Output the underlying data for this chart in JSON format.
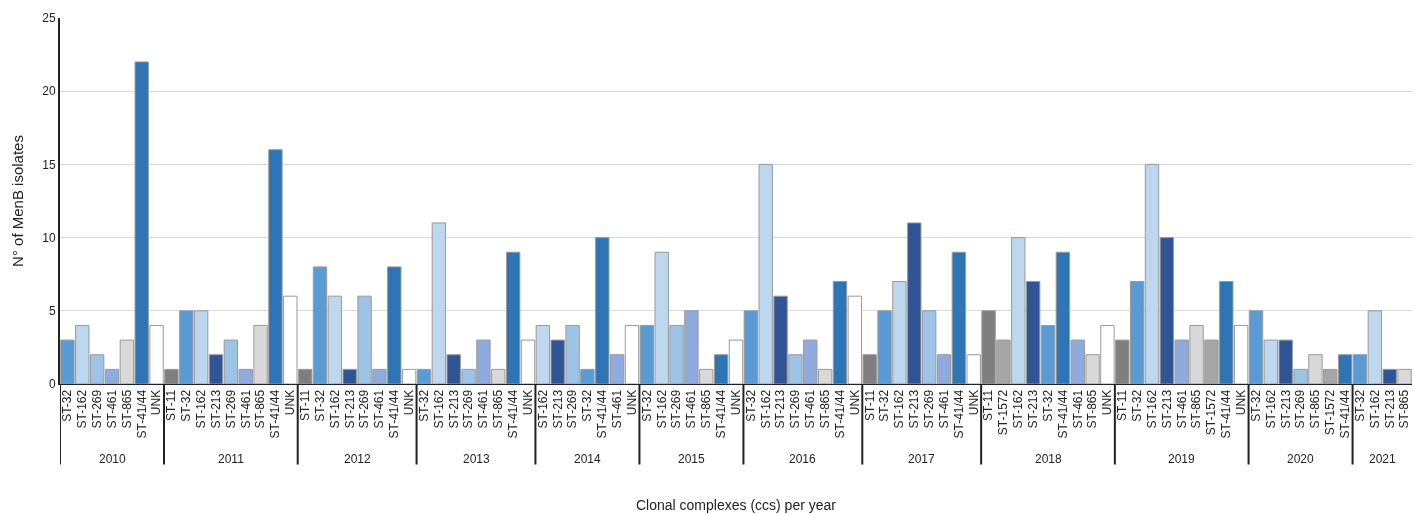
{
  "chart_data": {
    "type": "bar",
    "ylabel": "N° of MenB isolates",
    "categories": [
      "ST-32",
      "ST-162",
      "ST-269",
      "ST-461",
      "ST-865",
      "ST-41/44",
      "UNK",
      "ST-11",
      "ST-32",
      "ST-162",
      "ST-213",
      "ST-269",
      "ST-461",
      "ST-865",
      "ST-41/44",
      "UNK",
      "ST-11",
      "ST-32",
      "ST-162",
      "ST-213",
      "ST-269",
      "ST-461",
      "ST-41/44",
      "UNK",
      "ST-32",
      "ST-162",
      "ST-213",
      "ST-269",
      "ST-461",
      "ST-865",
      "ST-41/44",
      "UNK",
      "ST-162",
      "ST-213",
      "ST-269",
      "ST-32",
      "ST-41/44",
      "ST-461",
      "UNK",
      "ST-32",
      "ST-162",
      "ST-269",
      "ST-461",
      "ST-865",
      "ST-41/44",
      "UNK",
      "ST-32",
      "ST-162",
      "ST-213",
      "ST-269",
      "ST-461",
      "ST-865",
      "ST-41/44",
      "UNK",
      "ST-11",
      "ST-32",
      "ST-162",
      "ST-213",
      "ST-269",
      "ST-461",
      "ST-41/44",
      "UNK",
      "ST-11",
      "ST-1572",
      "ST-162",
      "ST-213",
      "ST-32",
      "ST-41/44",
      "ST-461",
      "ST-865",
      "UNK",
      "ST-11",
      "ST-32",
      "ST-162",
      "ST-213",
      "ST-461",
      "ST-865",
      "ST-1572",
      "ST-41/44",
      "UNK",
      "ST-32",
      "ST-162",
      "ST-213",
      "ST-269",
      "ST-865",
      "ST-1572",
      "ST-41/44",
      "ST-32",
      "ST-162",
      "ST-213",
      "ST-865"
    ],
    "values": [
      3,
      4,
      2,
      1,
      3,
      22,
      4,
      1,
      5,
      5,
      2,
      3,
      1,
      4,
      16,
      6,
      1,
      8,
      6,
      1,
      6,
      1,
      8,
      1,
      1,
      11,
      2,
      1,
      3,
      1,
      9,
      3,
      4,
      3,
      4,
      1,
      10,
      2,
      4,
      4,
      9,
      4,
      5,
      1,
      2,
      3,
      5,
      15,
      6,
      2,
      3,
      1,
      7,
      6,
      2,
      5,
      7,
      11,
      5,
      2,
      9,
      2,
      5,
      3,
      10,
      7,
      4,
      9,
      3,
      2,
      4,
      3,
      7,
      15,
      10,
      3,
      4,
      3,
      7,
      4,
      5,
      3,
      3,
      1,
      2,
      1,
      2,
      2,
      5,
      1,
      1
    ],
    "colors": [
      "#5b9bd5",
      "#bdd7ee",
      "#9dc3e6",
      "#8faadc",
      "#d9d9d9",
      "#2e75b6",
      "#ffffff",
      "#7f7f7f",
      "#5b9bd5",
      "#bdd7ee",
      "#2f5597",
      "#9dc3e6",
      "#8faadc",
      "#d9d9d9",
      "#2e75b6",
      "#ffffff",
      "#7f7f7f",
      "#5b9bd5",
      "#bdd7ee",
      "#2f5597",
      "#9dc3e6",
      "#8faadc",
      "#2e75b6",
      "#ffffff",
      "#5b9bd5",
      "#bdd7ee",
      "#2f5597",
      "#9dc3e6",
      "#8faadc",
      "#d9d9d9",
      "#2e75b6",
      "#ffffff",
      "#bdd7ee",
      "#2f5597",
      "#9dc3e6",
      "#5b9bd5",
      "#2e75b6",
      "#8faadc",
      "#ffffff",
      "#5b9bd5",
      "#bdd7ee",
      "#9dc3e6",
      "#8faadc",
      "#d9d9d9",
      "#2e75b6",
      "#ffffff",
      "#5b9bd5",
      "#bdd7ee",
      "#2f5597",
      "#9dc3e6",
      "#8faadc",
      "#d9d9d9",
      "#2e75b6",
      "#ffffff",
      "#7f7f7f",
      "#5b9bd5",
      "#bdd7ee",
      "#2f5597",
      "#9dc3e6",
      "#8faadc",
      "#2e75b6",
      "#ffffff",
      "#7f7f7f",
      "#a6a6a6",
      "#bdd7ee",
      "#2f5597",
      "#5b9bd5",
      "#2e75b6",
      "#8faadc",
      "#d9d9d9",
      "#ffffff",
      "#7f7f7f",
      "#5b9bd5",
      "#bdd7ee",
      "#2f5597",
      "#8faadc",
      "#d9d9d9",
      "#a6a6a6",
      "#2e75b6",
      "#ffffff",
      "#5b9bd5",
      "#bdd7ee",
      "#2f5597",
      "#9dc3e6",
      "#d9d9d9",
      "#a6a6a6",
      "#2e75b6",
      "#5b9bd5",
      "#bdd7ee",
      "#2f5597",
      "#d9d9d9"
    ],
    "annotations": [
      "2010",
      "2011",
      "2012",
      "2013",
      "2014",
      "2015",
      "2016",
      "2017",
      "2018",
      "2019",
      "2020",
      "2021",
      "Clonal complexes (ccs) per year"
    ],
    "ylim": [
      0,
      25
    ],
    "yticks": [
      0,
      5,
      10,
      15,
      20,
      25
    ],
    "grid": "y"
  }
}
